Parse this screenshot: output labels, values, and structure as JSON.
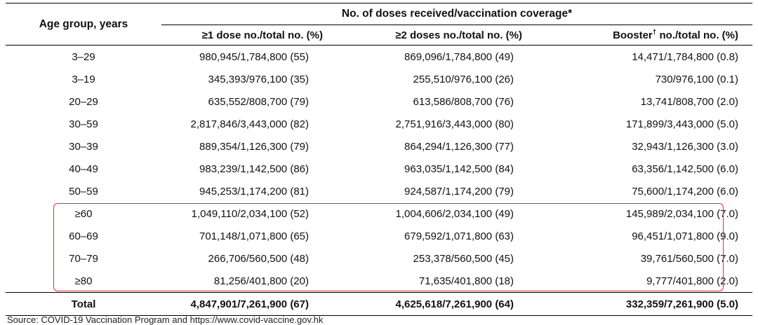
{
  "table": {
    "group_header": "No. of doses received/vaccination coverage*",
    "age_header": "Age group, years",
    "col1_header": "≥1 dose no./total no. (%)",
    "col2_header": "≥2 doses no./total no. (%)",
    "col3_header_prefix": "Booster",
    "col3_header_mark": "†",
    "col3_header_suffix": " no./total no. (%)",
    "rows": [
      {
        "age": "3–29",
        "dose1": "980,945/1,784,800 (55)",
        "dose2": "869,096/1,784,800 (49)",
        "booster": "14,471/1,784,800 (0.8)"
      },
      {
        "age": "3–19",
        "dose1": "345,393/976,100 (35)",
        "dose2": "255,510/976,100 (26)",
        "booster": "730/976,100 (0.1)"
      },
      {
        "age": "20–29",
        "dose1": "635,552/808,700 (79)",
        "dose2": "613,586/808,700 (76)",
        "booster": "13,741/808,700 (2.0)"
      },
      {
        "age": "30–59",
        "dose1": "2,817,846/3,443,000 (82)",
        "dose2": "2,751,916/3,443,000 (80)",
        "booster": "171,899/3,443,000 (5.0)"
      },
      {
        "age": "30–39",
        "dose1": "889,354/1,126,300 (79)",
        "dose2": "864,294/1,126,300 (77)",
        "booster": "32,943/1,126,300 (3.0)"
      },
      {
        "age": "40–49",
        "dose1": "983,239/1,142,500 (86)",
        "dose2": "963,035/1,142,500 (84)",
        "booster": "63,356/1,142,500 (6.0)"
      },
      {
        "age": "50–59",
        "dose1": "945,253/1,174,200 (81)",
        "dose2": "924,587/1,174,200 (79)",
        "booster": "75,600/1,174,200 (6.0)"
      },
      {
        "age": "≥60",
        "dose1": "1,049,110/2,034,100 (52)",
        "dose2": "1,004,606/2,034,100 (49)",
        "booster": "145,989/2,034,100 (7.0)"
      },
      {
        "age": "60–69",
        "dose1": "701,148/1,071,800 (65)",
        "dose2": "679,592/1,071,800 (63)",
        "booster": "96,451/1,071,800 (9.0)"
      },
      {
        "age": "70–79",
        "dose1": "266,706/560,500 (48)",
        "dose2": "253,378/560,500 (45)",
        "booster": "39,761/560,500 (7.0)"
      },
      {
        "age": "≥80",
        "dose1": "81,256/401,800 (20)",
        "dose2": "71,635/401,800 (18)",
        "booster": "9,777/401,800 (2.0)"
      }
    ],
    "total": {
      "age": "Total",
      "dose1": "4,847,901/7,261,900 (67)",
      "dose2": "4,625,618/7,261,900 (64)",
      "booster": "332,359/7,261,900 (5.0)"
    }
  },
  "highlight_color": "#e0332f",
  "source_text": "Source: COVID-19 Vaccination Program and https://www.covid-vaccine.gov.hk"
}
